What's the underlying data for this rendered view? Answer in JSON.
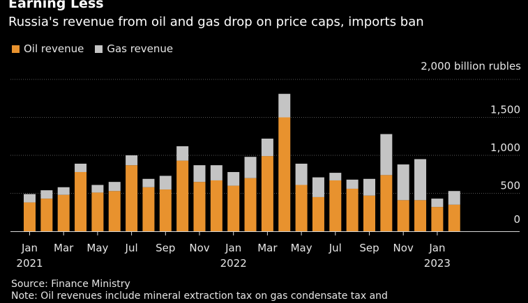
{
  "header": {
    "title": "Earning Less",
    "subtitle": "Russia's revenue from oil and gas drop on price caps, imports ban"
  },
  "legend": {
    "items": [
      {
        "label": "Oil revenue",
        "color": "#e8922e"
      },
      {
        "label": "Gas revenue",
        "color": "#c4c4c4"
      }
    ]
  },
  "chart_data": {
    "type": "bar",
    "stacked": true,
    "title": "Earning Less",
    "subtitle": "Russia's revenue from oil and gas drop on price caps, imports ban",
    "unit_label": "2,000 billion rubles",
    "ylim": [
      0,
      2000
    ],
    "y_ticks": [
      0,
      500,
      1000,
      1500,
      2000
    ],
    "y_tick_labels": [
      "0",
      "500",
      "1,000",
      "1,500",
      "2,000 billion rubles"
    ],
    "y_axis_side": "right",
    "grid": true,
    "legend_position": "top-left",
    "categories": [
      "Jan 2021",
      "Feb 2021",
      "Mar 2021",
      "Apr 2021",
      "May 2021",
      "Jun 2021",
      "Jul 2021",
      "Aug 2021",
      "Sep 2021",
      "Oct 2021",
      "Nov 2021",
      "Dec 2021",
      "Jan 2022",
      "Feb 2022",
      "Mar 2022",
      "Apr 2022",
      "May 2022",
      "Jun 2022",
      "Jul 2022",
      "Aug 2022",
      "Sep 2022",
      "Oct 2022",
      "Nov 2022",
      "Dec 2022",
      "Jan 2023",
      "Feb 2023"
    ],
    "x_tick_labels": [
      {
        "index": 0,
        "label": "Jan",
        "year": "2021"
      },
      {
        "index": 2,
        "label": "Mar",
        "year": ""
      },
      {
        "index": 4,
        "label": "May",
        "year": ""
      },
      {
        "index": 6,
        "label": "Jul",
        "year": ""
      },
      {
        "index": 8,
        "label": "Sep",
        "year": ""
      },
      {
        "index": 10,
        "label": "Nov",
        "year": ""
      },
      {
        "index": 12,
        "label": "Jan",
        "year": "2022"
      },
      {
        "index": 14,
        "label": "Mar",
        "year": ""
      },
      {
        "index": 16,
        "label": "May",
        "year": ""
      },
      {
        "index": 18,
        "label": "Jul",
        "year": ""
      },
      {
        "index": 20,
        "label": "Sep",
        "year": ""
      },
      {
        "index": 22,
        "label": "Nov",
        "year": ""
      },
      {
        "index": 24,
        "label": "Jan",
        "year": "2023"
      }
    ],
    "series": [
      {
        "name": "Oil revenue",
        "color": "#e8922e",
        "values": [
          380,
          430,
          480,
          780,
          510,
          530,
          870,
          580,
          550,
          930,
          650,
          670,
          600,
          700,
          990,
          1500,
          610,
          450,
          670,
          560,
          470,
          740,
          410,
          410,
          320,
          350
        ]
      },
      {
        "name": "Gas revenue",
        "color": "#c4c4c4",
        "values": [
          110,
          110,
          100,
          110,
          100,
          120,
          130,
          110,
          180,
          190,
          220,
          200,
          180,
          280,
          230,
          310,
          280,
          260,
          100,
          120,
          220,
          540,
          470,
          540,
          110,
          180
        ]
      }
    ]
  },
  "footer": {
    "source": "Source: Finance Ministry",
    "note": "Note: Oil revenues include mineral extraction tax on gas condensate tax and"
  }
}
